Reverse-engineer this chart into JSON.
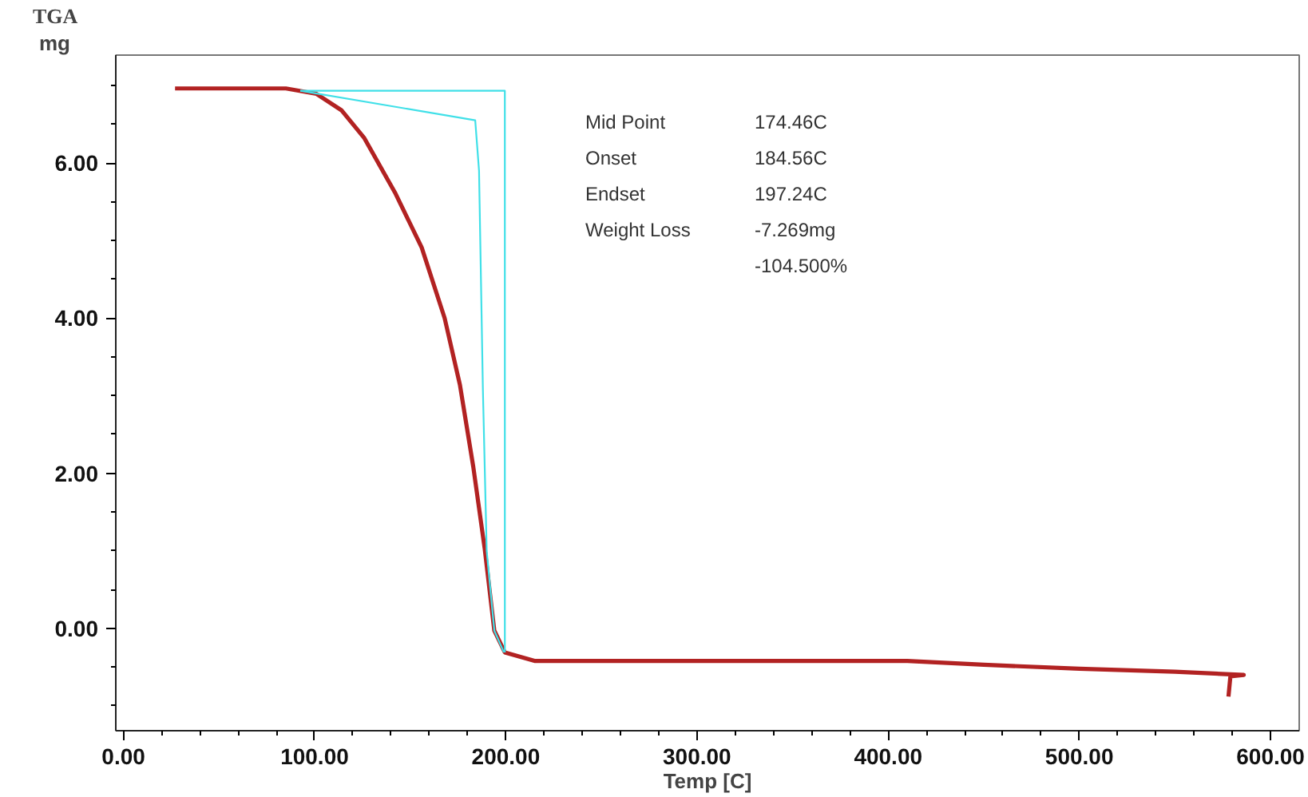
{
  "chart_data": {
    "type": "line",
    "title": "TGA",
    "ylabel": "mg",
    "xlabel": "Temp [C]",
    "xlim": [
      -4,
      615
    ],
    "ylim": [
      -1.32,
      7.39
    ],
    "xticks": [
      {
        "value": 0,
        "label": "0.00"
      },
      {
        "value": 20,
        "label": null
      },
      {
        "value": 40,
        "label": null
      },
      {
        "value": 60,
        "label": null
      },
      {
        "value": 80,
        "label": null
      },
      {
        "value": 100,
        "label": "100.00"
      },
      {
        "value": 120,
        "label": null
      },
      {
        "value": 140,
        "label": null
      },
      {
        "value": 160,
        "label": null
      },
      {
        "value": 180,
        "label": null
      },
      {
        "value": 200,
        "label": "200.00"
      },
      {
        "value": 220,
        "label": null
      },
      {
        "value": 240,
        "label": null
      },
      {
        "value": 260,
        "label": null
      },
      {
        "value": 280,
        "label": null
      },
      {
        "value": 300,
        "label": "300.00"
      },
      {
        "value": 320,
        "label": null
      },
      {
        "value": 340,
        "label": null
      },
      {
        "value": 360,
        "label": null
      },
      {
        "value": 380,
        "label": null
      },
      {
        "value": 400,
        "label": "400.00"
      },
      {
        "value": 420,
        "label": null
      },
      {
        "value": 440,
        "label": null
      },
      {
        "value": 460,
        "label": null
      },
      {
        "value": 480,
        "label": null
      },
      {
        "value": 500,
        "label": "500.00"
      },
      {
        "value": 520,
        "label": null
      },
      {
        "value": 540,
        "label": null
      },
      {
        "value": 560,
        "label": null
      },
      {
        "value": 580,
        "label": null
      },
      {
        "value": 600,
        "label": "600.00"
      }
    ],
    "yticks": [
      {
        "value": -1.0,
        "label": null
      },
      {
        "value": -0.5,
        "label": null
      },
      {
        "value": 0,
        "label": "0.00"
      },
      {
        "value": 0.5,
        "label": null
      },
      {
        "value": 1.0,
        "label": null
      },
      {
        "value": 1.5,
        "label": null
      },
      {
        "value": 2,
        "label": "2.00"
      },
      {
        "value": 2.5,
        "label": null
      },
      {
        "value": 3.0,
        "label": null
      },
      {
        "value": 3.5,
        "label": null
      },
      {
        "value": 4,
        "label": "4.00"
      },
      {
        "value": 4.5,
        "label": null
      },
      {
        "value": 5.0,
        "label": null
      },
      {
        "value": 5.5,
        "label": null
      },
      {
        "value": 6,
        "label": "6.00"
      },
      {
        "value": 6.5,
        "label": null
      },
      {
        "value": 7.0,
        "label": null
      }
    ],
    "grid": false,
    "marker": "none",
    "line_style": "solid",
    "series": [
      {
        "color": "#b22222",
        "x": [
          27,
          85,
          101,
          114,
          126,
          142,
          156,
          168,
          176,
          183,
          189,
          194,
          199.5,
          215,
          300,
          410,
          450,
          500,
          550,
          586,
          579,
          578
        ],
        "values": [
          6.96,
          6.96,
          6.89,
          6.68,
          6.32,
          5.62,
          4.91,
          4.0,
          3.14,
          2.08,
          1.02,
          -0.03,
          -0.31,
          -0.42,
          -0.42,
          -0.42,
          -0.47,
          -0.52,
          -0.56,
          -0.6,
          -0.62,
          -0.88
        ]
      },
      {
        "color": "#40e0e8",
        "x": [
          92.5,
          199.5,
          199.5
        ],
        "values": [
          6.93,
          6.93,
          -0.31
        ]
      },
      {
        "color": "#40e0e8",
        "x": [
          92.5,
          184,
          186,
          188,
          190,
          194,
          199
        ],
        "values": [
          6.93,
          6.55,
          5.9,
          3.1,
          1.0,
          -0.03,
          -0.31
        ]
      }
    ],
    "annotations": [
      "Mid Point",
      "174.46C",
      "Onset",
      "184.56C",
      "Endset",
      "197.24C",
      "Weight Loss",
      "-7.269mg",
      "-104.500%"
    ]
  }
}
